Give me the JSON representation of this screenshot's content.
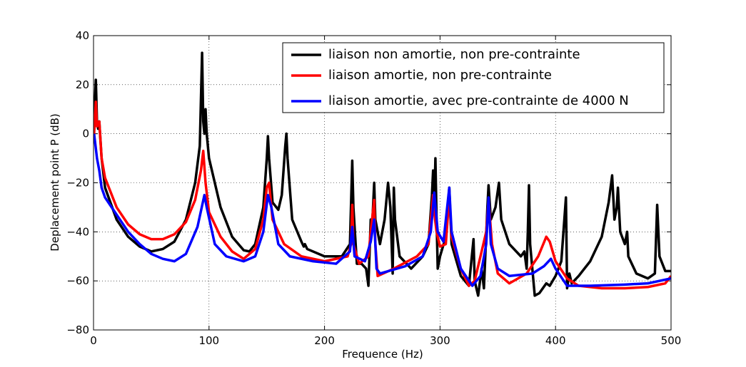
{
  "chart_data": {
    "type": "line",
    "xlabel": "Frequence (Hz)",
    "ylabel": "Deplacement point P (dB)",
    "xlim": [
      0,
      500
    ],
    "ylim": [
      -80,
      40
    ],
    "xticks": [
      0,
      100,
      200,
      300,
      400,
      500
    ],
    "yticks": [
      {
        "value": -80,
        "label": "−80"
      },
      {
        "value": -60,
        "label": "−60"
      },
      {
        "value": -40,
        "label": "−40"
      },
      {
        "value": -20,
        "label": "−20"
      },
      0,
      20,
      40
    ],
    "grid": true,
    "legend": "upper right",
    "series": [
      {
        "name": "liaison non amortie, non pre-contrainte",
        "color": "#000000",
        "x": [
          0.5,
          2,
          3,
          4,
          5,
          7,
          10,
          20,
          30,
          40,
          50,
          60,
          70,
          80,
          88,
          92,
          94,
          95,
          96,
          97,
          98,
          100,
          110,
          120,
          130,
          135,
          140,
          147,
          150,
          151,
          152,
          155,
          160,
          163,
          166,
          167,
          168,
          172,
          180,
          182,
          183,
          185,
          200,
          215,
          222,
          224,
          225,
          228,
          232,
          236,
          238,
          240,
          241,
          243,
          244,
          248,
          252,
          255,
          257,
          259,
          260,
          261,
          265,
          275,
          285,
          290,
          293,
          294,
          295,
          296,
          297,
          298,
          300,
          305,
          308,
          310,
          318,
          325,
          329,
          330,
          333,
          336,
          338,
          341,
          342,
          344,
          348,
          351,
          353,
          360,
          370,
          373,
          375,
          376,
          377,
          378,
          382,
          386,
          392,
          395,
          400,
          405,
          409,
          410,
          412,
          414,
          420,
          430,
          440,
          446,
          449,
          451,
          453,
          454,
          456,
          460,
          462,
          463,
          470,
          480,
          486,
          488,
          490,
          495,
          500
        ],
        "values": [
          5,
          22,
          5,
          2,
          5,
          -10,
          -22,
          -35,
          -42,
          -46,
          -48,
          -47,
          -44,
          -35,
          -20,
          -5,
          33,
          5,
          0,
          10,
          0,
          -10,
          -30,
          -42,
          -47.5,
          -48,
          -45,
          -30,
          -10,
          -1,
          -10,
          -28,
          -31,
          -25,
          -5,
          0,
          -10,
          -35,
          -44,
          -46,
          -45,
          -47,
          -50,
          -50,
          -45,
          -11,
          -30,
          -53,
          -53,
          -55,
          -62,
          -35,
          -40,
          -20,
          -35,
          -45,
          -35,
          -20,
          -30,
          -57,
          -22,
          -35,
          -50,
          -55,
          -50,
          -45,
          -25,
          -15,
          -30,
          -10,
          -35,
          -55,
          -50,
          -42,
          -22,
          -45,
          -58,
          -62,
          -43,
          -60,
          -66,
          -55,
          -63,
          -30,
          -21,
          -35,
          -30,
          -20,
          -35,
          -45,
          -50,
          -48,
          -55,
          -40,
          -21,
          -45,
          -66,
          -65,
          -61,
          -62,
          -58,
          -52,
          -26,
          -63,
          -57,
          -61,
          -58,
          -52,
          -42,
          -28,
          -17,
          -35,
          -30,
          -22,
          -40,
          -45,
          -40,
          -50,
          -57,
          -59,
          -57,
          -29,
          -50,
          -56,
          -56
        ]
      },
      {
        "name": "liaison amortie, non pre-contrainte",
        "color": "#ff0000",
        "x": [
          0.5,
          2,
          3,
          5,
          7,
          10,
          20,
          30,
          40,
          50,
          60,
          70,
          80,
          88,
          93,
          95,
          97,
          100,
          110,
          120,
          130,
          140,
          147,
          150,
          152,
          155,
          165,
          180,
          200,
          220,
          223,
          224,
          225,
          230,
          238,
          240,
          243,
          244,
          246,
          260,
          280,
          290,
          294,
          295,
          297,
          300,
          305,
          308,
          310,
          318,
          325,
          330,
          335,
          340,
          342,
          345,
          350,
          360,
          375,
          385,
          392,
          395,
          400,
          410,
          420,
          440,
          460,
          480,
          495,
          500
        ],
        "values": [
          0,
          13,
          3,
          5,
          -10,
          -18,
          -30,
          -37,
          -41,
          -43,
          -43,
          -41,
          -36,
          -27,
          -15,
          -7,
          -20,
          -32,
          -42,
          -48,
          -51,
          -47,
          -35,
          -22,
          -20,
          -35,
          -45,
          -50,
          -52,
          -50,
          -45,
          -29,
          -45,
          -53,
          -50,
          -40,
          -27,
          -45,
          -58,
          -55,
          -50,
          -45,
          -25,
          -32,
          -40,
          -46,
          -45,
          -25,
          -42,
          -55,
          -62,
          -60,
          -50,
          -40,
          -27,
          -45,
          -57,
          -61,
          -57,
          -50,
          -42,
          -44,
          -52,
          -59,
          -62,
          -63,
          -63,
          -62.5,
          -61,
          -58
        ]
      },
      {
        "name": "liaison amortie, avec pre-contrainte de 4000 N",
        "color": "#0000ff",
        "x": [
          0.5,
          3,
          5,
          7,
          10,
          20,
          30,
          40,
          50,
          60,
          70,
          80,
          90,
          96,
          98,
          105,
          115,
          130,
          140,
          147,
          151,
          154,
          160,
          170,
          190,
          210,
          222,
          224,
          226,
          235,
          240,
          243,
          245,
          248,
          270,
          285,
          292,
          295,
          298,
          303,
          308,
          310,
          318,
          328,
          335,
          340,
          342,
          344,
          350,
          360,
          380,
          390,
          396,
          400,
          410,
          430,
          460,
          480,
          500
        ],
        "values": [
          0,
          -10,
          -15,
          -22,
          -26,
          -33,
          -40,
          -45,
          -49,
          -51,
          -52,
          -49,
          -38,
          -25,
          -30,
          -45,
          -50,
          -52,
          -50,
          -40,
          -25,
          -30,
          -45,
          -50,
          -52,
          -53,
          -48,
          -38,
          -50,
          -52,
          -44,
          -35,
          -55,
          -57,
          -54,
          -50,
          -40,
          -24,
          -40,
          -44,
          -22,
          -40,
          -55,
          -62,
          -58,
          -45,
          -26,
          -45,
          -55,
          -58,
          -57,
          -54,
          -51,
          -55,
          -62,
          -62,
          -61.5,
          -61,
          -59
        ]
      }
    ]
  }
}
